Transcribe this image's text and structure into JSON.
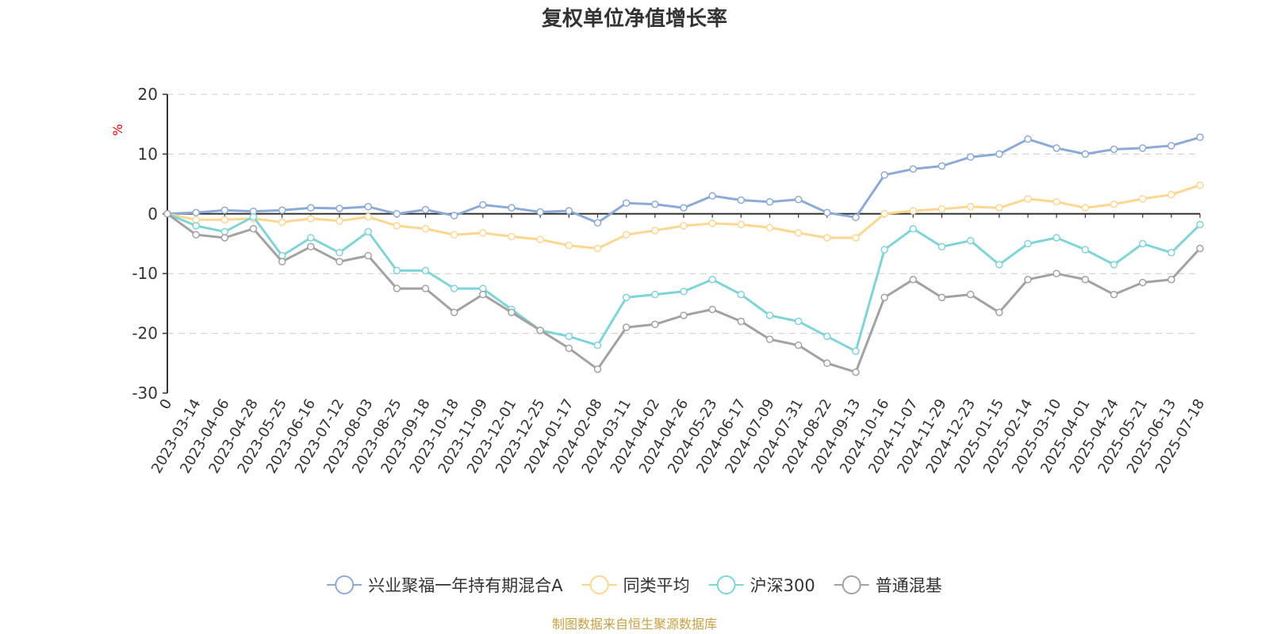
{
  "chart_data": {
    "type": "line",
    "title": "复权单位净值增长率",
    "ylabel": "%",
    "ylim": [
      -30,
      20
    ],
    "yticks": [
      20,
      10,
      0,
      -10,
      -20,
      -30
    ],
    "grid": "horizontal-dashed",
    "legend_position": "bottom",
    "x_ticks": [
      "0",
      "2023-03-14",
      "2023-04-06",
      "2023-04-28",
      "2023-05-25",
      "2023-06-16",
      "2023-07-12",
      "2023-08-03",
      "2023-08-25",
      "2023-09-18",
      "2023-10-18",
      "2023-11-09",
      "2023-12-01",
      "2023-12-25",
      "2024-01-17",
      "2024-02-08",
      "2024-03-11",
      "2024-04-02",
      "2024-04-26",
      "2024-05-23",
      "2024-06-17",
      "2024-07-09",
      "2024-07-31",
      "2024-08-22",
      "2024-09-13",
      "2024-10-16",
      "2024-11-07",
      "2024-11-29",
      "2024-12-23",
      "2025-01-15",
      "2025-02-14",
      "2025-03-10",
      "2025-04-01",
      "2025-04-24",
      "2025-05-21",
      "2025-06-13",
      "2025-07-18"
    ],
    "series": [
      {
        "name": "兴业聚福一年持有期混合A",
        "color": "#8caad8",
        "values": [
          0,
          0.2,
          0.6,
          0.4,
          0.6,
          1.0,
          0.9,
          1.2,
          0.0,
          0.7,
          -0.3,
          1.5,
          1.0,
          0.3,
          0.5,
          -1.5,
          1.8,
          1.6,
          1.0,
          3.0,
          2.3,
          2.0,
          2.4,
          0.2,
          -0.6,
          6.5,
          7.5,
          8.0,
          9.5,
          10.0,
          12.5,
          11.0,
          10.0,
          10.8,
          11.0,
          11.4,
          12.8
        ]
      },
      {
        "name": "同类平均",
        "color": "#fdd68f",
        "values": [
          0,
          -1.0,
          -1.0,
          -0.8,
          -1.4,
          -0.8,
          -1.2,
          -0.5,
          -2.0,
          -2.5,
          -3.5,
          -3.2,
          -3.8,
          -4.3,
          -5.3,
          -5.8,
          -3.5,
          -2.8,
          -2.0,
          -1.6,
          -1.8,
          -2.3,
          -3.2,
          -4.0,
          -4.0,
          0.0,
          0.5,
          0.8,
          1.2,
          1.0,
          2.5,
          2.0,
          1.0,
          1.6,
          2.5,
          3.2,
          4.8
        ]
      },
      {
        "name": "沪深300",
        "color": "#7fd4d8",
        "values": [
          0,
          -2.0,
          -3.0,
          -0.5,
          -7.0,
          -4.0,
          -6.5,
          -3.0,
          -9.5,
          -9.5,
          -12.5,
          -12.5,
          -16.0,
          -19.5,
          -20.5,
          -22.0,
          -14.0,
          -13.5,
          -13.0,
          -11.0,
          -13.5,
          -17.0,
          -18.0,
          -20.5,
          -23.0,
          -6.0,
          -2.5,
          -5.5,
          -4.5,
          -8.5,
          -5.0,
          -4.0,
          -6.0,
          -8.5,
          -5.0,
          -6.5,
          -1.8
        ]
      },
      {
        "name": "普通混基",
        "color": "#a2a2a2",
        "values": [
          0,
          -3.5,
          -4.0,
          -2.5,
          -8.0,
          -5.5,
          -8.0,
          -7.0,
          -12.5,
          -12.5,
          -16.5,
          -13.5,
          -16.5,
          -19.5,
          -22.5,
          -26.0,
          -19.0,
          -18.5,
          -17.0,
          -16.0,
          -18.0,
          -21.0,
          -22.0,
          -25.0,
          -26.5,
          -14.0,
          -11.0,
          -14.0,
          -13.5,
          -16.5,
          -11.0,
          -10.0,
          -11.0,
          -13.5,
          -11.5,
          -11.0,
          -5.8
        ]
      }
    ]
  },
  "footer": {
    "source_text": "制图数据来自恒生聚源数据库"
  }
}
